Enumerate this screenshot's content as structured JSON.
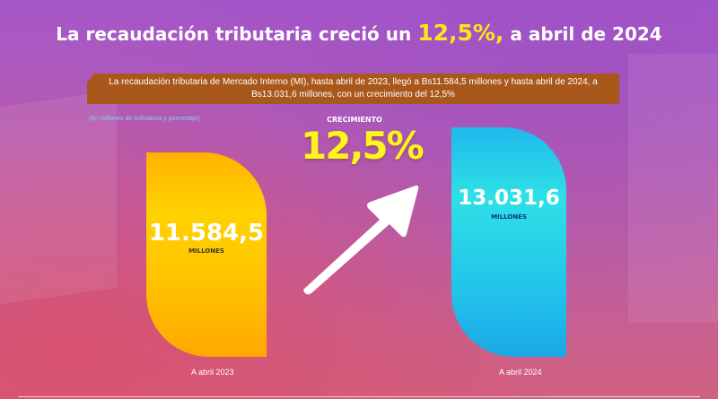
{
  "title": {
    "pre": "La recaudación tributaria creció un ",
    "highlight": "12,5%,",
    "post": " a abril de 2024"
  },
  "banner": "La recaudación tributaria de Mercado Interno (MI), hasta abril de 2023, llegó a Bs11.584,5 millones y hasta abril de 2024, a Bs13.031,6 millones, con un crecimiento del 12,5%",
  "note": "(En millones de bolivianos y porcentaje)",
  "growth": {
    "label": "CRECIMIENTO",
    "value": "12,5%"
  },
  "chart_data": {
    "type": "bar",
    "title": "La recaudación tributaria creció un 12,5%, a abril de 2024",
    "categories": [
      "A abril 2023",
      "A abril 2024"
    ],
    "values": [
      11584.5,
      13031.6
    ],
    "value_labels": [
      "11.584,5",
      "13.031,6"
    ],
    "unit_label": "MILLONES",
    "ylabel": "En millones de bolivianos",
    "growth_pct": 12.5,
    "colors": [
      "#ffc400",
      "#22c4ea"
    ]
  }
}
